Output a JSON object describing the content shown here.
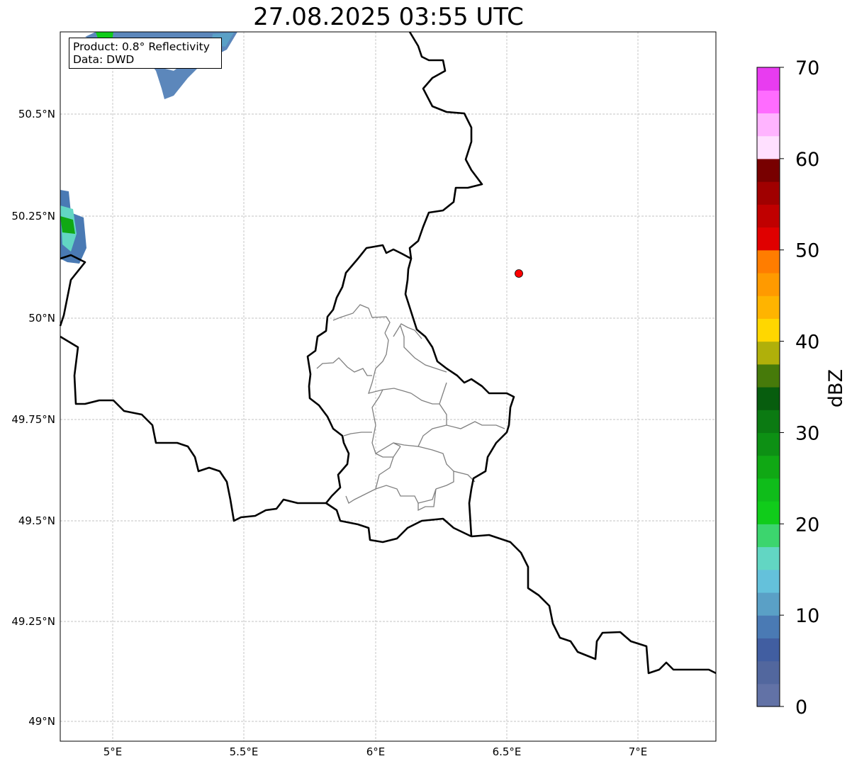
{
  "title": "27.08.2025 03:55 UTC",
  "info": {
    "product": "Product: 0.8° Reflectivity",
    "data": "Data: DWD"
  },
  "map": {
    "lon_ticks": [
      "5°E",
      "5.5°E",
      "6°E",
      "6.5°E",
      "7°E"
    ],
    "lat_ticks": [
      "50.5°N",
      "50.25°N",
      "50°N",
      "49.75°N",
      "49.5°N",
      "49.25°N",
      "49°N"
    ],
    "extent": {
      "lon": [
        4.8,
        7.3
      ],
      "lat": [
        48.95,
        50.7
      ]
    },
    "marker": {
      "lon": 6.55,
      "lat": 50.11,
      "color": "#ff0000"
    }
  },
  "colorbar": {
    "label": "dBZ",
    "min": 0,
    "max": 70,
    "step": 2.5,
    "ticks": [
      "0",
      "10",
      "20",
      "30",
      "40",
      "50",
      "60",
      "70"
    ],
    "colors": [
      "#6272a6",
      "#52679e",
      "#415ea1",
      "#4a7ab4",
      "#5aa0c6",
      "#64c1db",
      "#62d6c3",
      "#3cd56e",
      "#10cc1a",
      "#0fbd1a",
      "#10a814",
      "#0d9014",
      "#0b7a12",
      "#075d0e",
      "#467a0a",
      "#b0b00a",
      "#ffd700",
      "#ffb400",
      "#ff9a00",
      "#ff7d00",
      "#e00000",
      "#c00000",
      "#a00000",
      "#780000",
      "#ffe0ff",
      "#ffb4ff",
      "#ff6cff",
      "#e83cf0"
    ]
  }
}
